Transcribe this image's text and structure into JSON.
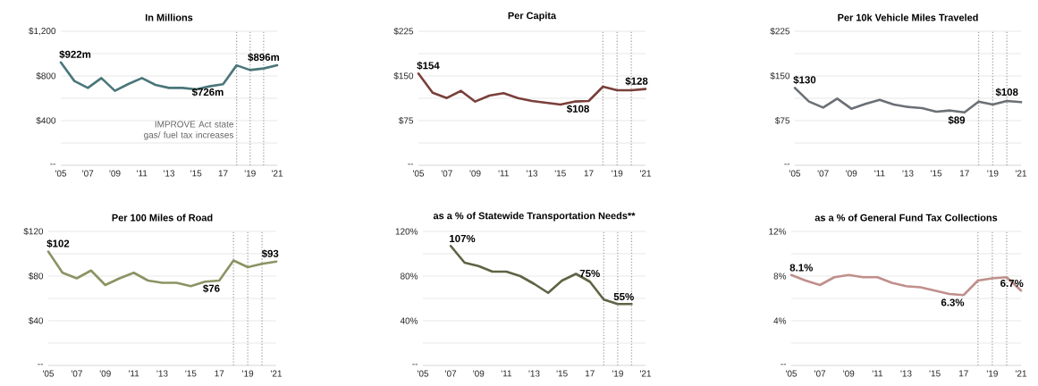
{
  "chart_data": [
    {
      "type": "line",
      "title": "In Millions",
      "x": [
        2005,
        2006,
        2007,
        2008,
        2009,
        2010,
        2011,
        2012,
        2013,
        2014,
        2015,
        2016,
        2017,
        2018,
        2019,
        2020,
        2021
      ],
      "xlim": [
        2005,
        2021
      ],
      "xticks": [
        {
          "value": 2005,
          "label": "'05"
        },
        {
          "value": 2007,
          "label": "'07"
        },
        {
          "value": 2009,
          "label": "'09"
        },
        {
          "value": 2011,
          "label": "'11"
        },
        {
          "value": 2013,
          "label": "'13"
        },
        {
          "value": 2015,
          "label": "'15"
        },
        {
          "value": 2017,
          "label": "17"
        },
        {
          "value": 2019,
          "label": "'19"
        },
        {
          "value": 2021,
          "label": "'21"
        }
      ],
      "ylim": [
        0,
        1200
      ],
      "yticks": [
        {
          "value": 0,
          "label": "--"
        },
        {
          "value": 200,
          "label": null
        },
        {
          "value": 400,
          "label": "$400"
        },
        {
          "value": 600,
          "label": null
        },
        {
          "value": 800,
          "label": "$800"
        },
        {
          "value": 1000,
          "label": null
        },
        {
          "value": 1200,
          "label": "$1,200"
        }
      ],
      "grid": "y",
      "series": [
        {
          "color": "#4a767a",
          "values": [
            922,
            755,
            693,
            781,
            667,
            728,
            781,
            720,
            693,
            693,
            680,
            707,
            726,
            895,
            853,
            867,
            896
          ]
        }
      ],
      "ref_lines": [
        {
          "axis": "x",
          "value": 2018,
          "label": "IMPROVE Act state gas/ fuel tax increases",
          "color": "#a6a6a6",
          "line_style": "dotted"
        },
        {
          "axis": "x",
          "value": 2019,
          "color": "#a6a6a6",
          "line_style": "dotted"
        },
        {
          "axis": "x",
          "value": 2020,
          "color": "#a6a6a6",
          "line_style": "dotted"
        }
      ],
      "annotations": [
        {
          "text": "$922m",
          "x": 2005,
          "y": 922
        },
        {
          "text": "$726m",
          "x": 2017,
          "y": 726
        },
        {
          "text": "$896m",
          "x": 2021,
          "y": 896
        }
      ]
    },
    {
      "type": "line",
      "title": "Per Capita",
      "x": [
        2005,
        2006,
        2007,
        2008,
        2009,
        2010,
        2011,
        2012,
        2013,
        2014,
        2015,
        2016,
        2017,
        2018,
        2019,
        2020,
        2021
      ],
      "xlim": [
        2005,
        2021
      ],
      "xticks": [
        {
          "value": 2005,
          "label": "'05"
        },
        {
          "value": 2007,
          "label": "'07"
        },
        {
          "value": 2009,
          "label": "'09"
        },
        {
          "value": 2011,
          "label": "'11"
        },
        {
          "value": 2013,
          "label": "'13"
        },
        {
          "value": 2015,
          "label": "'15"
        },
        {
          "value": 2017,
          "label": "17"
        },
        {
          "value": 2019,
          "label": "'19"
        },
        {
          "value": 2021,
          "label": "'21"
        }
      ],
      "ylim": [
        0,
        225
      ],
      "yticks": [
        {
          "value": 0,
          "label": "--"
        },
        {
          "value": 37.5,
          "label": null
        },
        {
          "value": 75,
          "label": "$75"
        },
        {
          "value": 112.5,
          "label": null
        },
        {
          "value": 150,
          "label": "$150"
        },
        {
          "value": 187.5,
          "label": null
        },
        {
          "value": 225,
          "label": "$225"
        }
      ],
      "grid": "y",
      "series": [
        {
          "color": "#7a3f3b",
          "values": [
            154,
            122,
            113,
            125,
            107,
            117,
            121,
            113,
            108,
            105,
            102,
            107,
            108,
            132,
            126,
            126,
            128
          ]
        }
      ],
      "ref_lines": [
        {
          "axis": "x",
          "value": 2018,
          "color": "#a6a6a6",
          "line_style": "dotted"
        },
        {
          "axis": "x",
          "value": 2019,
          "color": "#a6a6a6",
          "line_style": "dotted"
        },
        {
          "axis": "x",
          "value": 2020,
          "color": "#a6a6a6",
          "line_style": "dotted"
        }
      ],
      "annotations": [
        {
          "text": "$154",
          "x": 2005,
          "y": 154
        },
        {
          "text": "$108",
          "x": 2017,
          "y": 108
        },
        {
          "text": "$128",
          "x": 2021,
          "y": 128
        }
      ]
    },
    {
      "type": "line",
      "title": "Per 10k Vehicle Miles Traveled",
      "x": [
        2005,
        2006,
        2007,
        2008,
        2009,
        2010,
        2011,
        2012,
        2013,
        2014,
        2015,
        2016,
        2017,
        2018,
        2019,
        2020,
        2021
      ],
      "xlim": [
        2005,
        2021
      ],
      "xticks": [
        {
          "value": 2005,
          "label": "'05"
        },
        {
          "value": 2007,
          "label": "'07"
        },
        {
          "value": 2009,
          "label": "'09"
        },
        {
          "value": 2011,
          "label": "'11"
        },
        {
          "value": 2013,
          "label": "'13"
        },
        {
          "value": 2015,
          "label": "'15"
        },
        {
          "value": 2017,
          "label": "17"
        },
        {
          "value": 2019,
          "label": "'19"
        },
        {
          "value": 2021,
          "label": "'21"
        }
      ],
      "ylim": [
        0,
        225
      ],
      "yticks": [
        {
          "value": 0,
          "label": "--"
        },
        {
          "value": 37.5,
          "label": null
        },
        {
          "value": 75,
          "label": "$75"
        },
        {
          "value": 112.5,
          "label": null
        },
        {
          "value": 150,
          "label": "$150"
        },
        {
          "value": 187.5,
          "label": null
        },
        {
          "value": 225,
          "label": "$225"
        }
      ],
      "grid": "y",
      "series": [
        {
          "color": "#6a7076",
          "values": [
            130,
            107,
            97,
            112,
            95,
            103,
            110,
            102,
            98,
            96,
            90,
            92,
            89,
            107,
            102,
            108,
            106
          ]
        }
      ],
      "ref_lines": [
        {
          "axis": "x",
          "value": 2018,
          "color": "#a6a6a6",
          "line_style": "dotted"
        },
        {
          "axis": "x",
          "value": 2019,
          "color": "#a6a6a6",
          "line_style": "dotted"
        },
        {
          "axis": "x",
          "value": 2020,
          "color": "#a6a6a6",
          "line_style": "dotted"
        }
      ],
      "annotations": [
        {
          "text": "$130",
          "x": 2005,
          "y": 130
        },
        {
          "text": "$89",
          "x": 2017,
          "y": 89
        },
        {
          "text": "$108",
          "x": 2020,
          "y": 108
        }
      ]
    },
    {
      "type": "line",
      "title": "Per 100 Miles of Road",
      "x": [
        2005,
        2006,
        2007,
        2008,
        2009,
        2010,
        2011,
        2012,
        2013,
        2014,
        2015,
        2016,
        2017,
        2018,
        2019,
        2020,
        2021
      ],
      "xlim": [
        2005,
        2021
      ],
      "xticks": [
        {
          "value": 2005,
          "label": "'05"
        },
        {
          "value": 2007,
          "label": "'07"
        },
        {
          "value": 2009,
          "label": "'09"
        },
        {
          "value": 2011,
          "label": "'11"
        },
        {
          "value": 2013,
          "label": "'13"
        },
        {
          "value": 2015,
          "label": "'15"
        },
        {
          "value": 2017,
          "label": "17"
        },
        {
          "value": 2019,
          "label": "'19"
        },
        {
          "value": 2021,
          "label": "'21"
        }
      ],
      "ylim": [
        0,
        120
      ],
      "yticks": [
        {
          "value": 0,
          "label": "--"
        },
        {
          "value": 20,
          "label": null
        },
        {
          "value": 40,
          "label": "$40"
        },
        {
          "value": 60,
          "label": null
        },
        {
          "value": 80,
          "label": "$80"
        },
        {
          "value": 100,
          "label": null
        },
        {
          "value": 120,
          "label": "$120"
        }
      ],
      "grid": "y",
      "series": [
        {
          "color": "#8a9463",
          "values": [
            102,
            83,
            78,
            85,
            72,
            78,
            83,
            76,
            74,
            74,
            71,
            75,
            76,
            94,
            88,
            91,
            93
          ]
        }
      ],
      "ref_lines": [
        {
          "axis": "x",
          "value": 2018,
          "color": "#a6a6a6",
          "line_style": "dotted"
        },
        {
          "axis": "x",
          "value": 2019,
          "color": "#a6a6a6",
          "line_style": "dotted"
        },
        {
          "axis": "x",
          "value": 2020,
          "color": "#a6a6a6",
          "line_style": "dotted"
        }
      ],
      "annotations": [
        {
          "text": "$102",
          "x": 2005,
          "y": 102
        },
        {
          "text": "$76",
          "x": 2017,
          "y": 76
        },
        {
          "text": "$93",
          "x": 2021,
          "y": 93
        }
      ]
    },
    {
      "type": "line",
      "title": "as a % of Statewide Transportation Needs**",
      "x": [
        2007,
        2008,
        2009,
        2010,
        2011,
        2012,
        2013,
        2014,
        2015,
        2016,
        2017,
        2018,
        2019,
        2020
      ],
      "xlim": [
        2005,
        2021
      ],
      "xticks": [
        {
          "value": 2005,
          "label": "'05"
        },
        {
          "value": 2007,
          "label": "'07"
        },
        {
          "value": 2009,
          "label": "'09"
        },
        {
          "value": 2011,
          "label": "'11"
        },
        {
          "value": 2013,
          "label": "'13"
        },
        {
          "value": 2015,
          "label": "'15"
        },
        {
          "value": 2017,
          "label": "17"
        },
        {
          "value": 2019,
          "label": "'19"
        },
        {
          "value": 2021,
          "label": "'21"
        }
      ],
      "ylim": [
        0,
        120
      ],
      "yticks": [
        {
          "value": 0,
          "label": "--"
        },
        {
          "value": 20,
          "label": null
        },
        {
          "value": 40,
          "label": "40%"
        },
        {
          "value": 60,
          "label": null
        },
        {
          "value": 80,
          "label": "80%"
        },
        {
          "value": 100,
          "label": null
        },
        {
          "value": 120,
          "label": "120%"
        }
      ],
      "grid": "y",
      "series": [
        {
          "color": "#5e6444",
          "values": [
            107,
            92,
            89,
            84,
            84,
            80,
            73,
            65,
            76,
            82,
            75,
            59,
            55,
            55
          ]
        }
      ],
      "ref_lines": [
        {
          "axis": "x",
          "value": 2018,
          "color": "#a6a6a6",
          "line_style": "dotted"
        },
        {
          "axis": "x",
          "value": 2019,
          "color": "#a6a6a6",
          "line_style": "dotted"
        },
        {
          "axis": "x",
          "value": 2020,
          "color": "#a6a6a6",
          "line_style": "dotted"
        }
      ],
      "annotations": [
        {
          "text": "107%",
          "x": 2007,
          "y": 107
        },
        {
          "text": "75%",
          "x": 2017,
          "y": 75
        },
        {
          "text": "55%",
          "x": 2020,
          "y": 55
        }
      ]
    },
    {
      "type": "line",
      "title": "as a % of General Fund Tax Collections",
      "x": [
        2005,
        2006,
        2007,
        2008,
        2009,
        2010,
        2011,
        2012,
        2013,
        2014,
        2015,
        2016,
        2017,
        2018,
        2019,
        2020,
        2021
      ],
      "xlim": [
        2005,
        2021
      ],
      "xticks": [
        {
          "value": 2005,
          "label": "'05"
        },
        {
          "value": 2007,
          "label": "'07"
        },
        {
          "value": 2009,
          "label": "'09"
        },
        {
          "value": 2011,
          "label": "'11"
        },
        {
          "value": 2013,
          "label": "'13"
        },
        {
          "value": 2015,
          "label": "'15"
        },
        {
          "value": 2017,
          "label": "17"
        },
        {
          "value": 2019,
          "label": "'19"
        },
        {
          "value": 2021,
          "label": "'21"
        }
      ],
      "ylim": [
        0,
        12
      ],
      "yticks": [
        {
          "value": 0,
          "label": "--"
        },
        {
          "value": 2,
          "label": null
        },
        {
          "value": 4,
          "label": "4%"
        },
        {
          "value": 6,
          "label": null
        },
        {
          "value": 8,
          "label": "8%"
        },
        {
          "value": 10,
          "label": null
        },
        {
          "value": 12,
          "label": "12%"
        }
      ],
      "grid": "y",
      "series": [
        {
          "color": "#c08f8b",
          "values": [
            8.1,
            7.6,
            7.2,
            7.9,
            8.1,
            7.9,
            7.9,
            7.4,
            7.1,
            7.0,
            6.7,
            6.4,
            6.3,
            7.6,
            7.8,
            7.9,
            6.7
          ]
        }
      ],
      "ref_lines": [
        {
          "axis": "x",
          "value": 2018,
          "color": "#a6a6a6",
          "line_style": "dotted"
        },
        {
          "axis": "x",
          "value": 2019,
          "color": "#a6a6a6",
          "line_style": "dotted"
        },
        {
          "axis": "x",
          "value": 2020,
          "color": "#a6a6a6",
          "line_style": "dotted"
        }
      ],
      "annotations": [
        {
          "text": "8.1%",
          "x": 2005,
          "y": 8.1
        },
        {
          "text": "6.3%",
          "x": 2017,
          "y": 6.3
        },
        {
          "text": "6.7%",
          "x": 2021,
          "y": 6.7
        }
      ]
    }
  ]
}
